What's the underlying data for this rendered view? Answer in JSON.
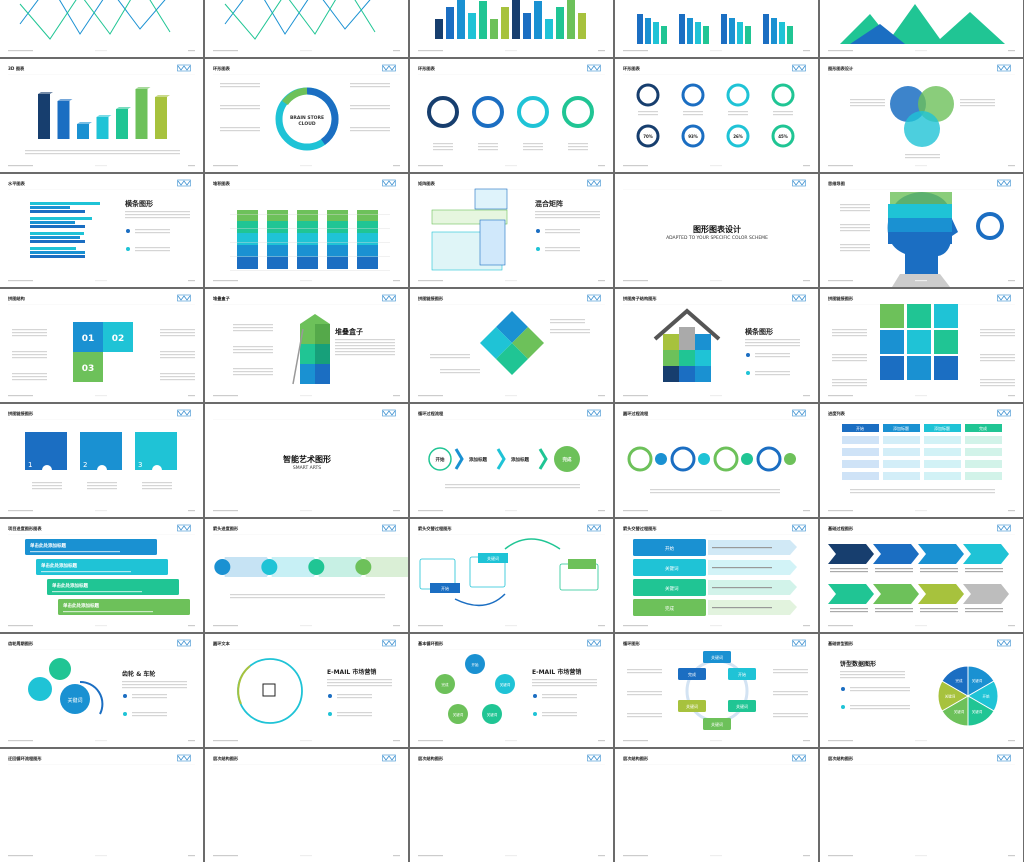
{
  "colors": {
    "navy": "#173e6e",
    "blue": "#1b6ec2",
    "mid": "#1a91d2",
    "cyan": "#1fc3d6",
    "teal": "#20c594",
    "green": "#6dc15a",
    "lime": "#a7c23d",
    "gray": "#bdbdbd",
    "logo": "#3a8fd0"
  },
  "slides": [
    {
      "kind": "line"
    },
    {
      "kind": "line"
    },
    {
      "kind": "bars"
    },
    {
      "kind": "groupbars"
    },
    {
      "kind": "mountain"
    },
    {
      "kind": "bars3d",
      "title": "3D 图表"
    },
    {
      "kind": "donut",
      "title": "环形图表",
      "center": [
        "BRAIN STORE",
        "CLOUD"
      ]
    },
    {
      "kind": "rings4",
      "title": "环形图表"
    },
    {
      "kind": "rings8",
      "title": "环形图表",
      "percents": [
        "70%",
        "93%",
        "26%",
        "45%"
      ]
    },
    {
      "kind": "venn",
      "title": "图形图表设计"
    },
    {
      "kind": "hbar",
      "title": "水平图表",
      "heading": "横条图形"
    },
    {
      "kind": "stacked",
      "title": "堆积图表"
    },
    {
      "kind": "matrix",
      "title": "矩阵图表",
      "heading": "混合矩阵"
    },
    {
      "kind": "cover",
      "heading": "图形图表设计",
      "sub": "ADAPTED TO YOUR SPECIFIC COLOR SCHEME"
    },
    {
      "kind": "head",
      "title": "思维导图"
    },
    {
      "kind": "puzzle3",
      "title": "拼图结构",
      "nums": [
        "01",
        "02",
        "03"
      ]
    },
    {
      "kind": "boxes",
      "title": "堆叠盒子",
      "heading": "堆叠盒子"
    },
    {
      "kind": "diamond",
      "title": "拼图链接图形"
    },
    {
      "kind": "house",
      "title": "拼图房子结构图形",
      "heading": "横条图形"
    },
    {
      "kind": "pgrid",
      "title": "拼图链接图形"
    },
    {
      "kind": "prow",
      "title": "拼图链接图形",
      "nums": [
        "1",
        "2",
        "3"
      ]
    },
    {
      "kind": "cover2",
      "heading": "智能艺术图形",
      "sub": "SMART ARTS"
    },
    {
      "kind": "flow",
      "title": "循环过程流程",
      "labels": [
        "开始",
        "添加标题",
        "添加标题",
        "完成"
      ]
    },
    {
      "kind": "circles",
      "title": "圆环过程流程"
    },
    {
      "kind": "table",
      "title": "进度列表",
      "headers": [
        "开始",
        "添加标题",
        "添加标题",
        "完成"
      ]
    },
    {
      "kind": "stairs",
      "title": "项目进度图形图表",
      "label": "单击此处添加标题"
    },
    {
      "kind": "arrows",
      "title": "箭头进度图形"
    },
    {
      "kind": "swap",
      "title": "箭头交替过程图形",
      "labels": [
        "开始",
        "关键词"
      ]
    },
    {
      "kind": "list",
      "title": "箭头交替过程图形",
      "labels": [
        "开始",
        "关键词",
        "关键词",
        "完成"
      ]
    },
    {
      "kind": "chevrons",
      "title": "基础过程图形"
    },
    {
      "kind": "gears",
      "title": "齿轮周期图形",
      "heading": "齿轮 & 车轮",
      "key": "关键词"
    },
    {
      "kind": "ring",
      "title": "圆环文本",
      "heading": "E-MAIL 市场营销"
    },
    {
      "kind": "cycle",
      "title": "基本循环图形",
      "heading": "E-MAIL 市场营销",
      "labels": [
        "开始",
        "关键词",
        "关键词",
        "关键词",
        "完成"
      ]
    },
    {
      "kind": "hexcycle",
      "title": "循环图形",
      "labels": [
        "关键词",
        "开始",
        "关键词",
        "关键词",
        "关键词",
        "完成"
      ]
    },
    {
      "kind": "pie",
      "title": "基础饼型图形",
      "heading": "饼型数据图形",
      "labels": [
        "关键词",
        "开始",
        "关键词",
        "关键词",
        "关键词",
        "完成"
      ]
    },
    {
      "kind": "blank",
      "title": "迂回循环流程图形"
    },
    {
      "kind": "blank",
      "title": "层次结构图形"
    },
    {
      "kind": "blank",
      "title": "层次结构图形"
    },
    {
      "kind": "blank",
      "title": "层次结构图形"
    },
    {
      "kind": "blank",
      "title": "层次结构图形"
    }
  ]
}
